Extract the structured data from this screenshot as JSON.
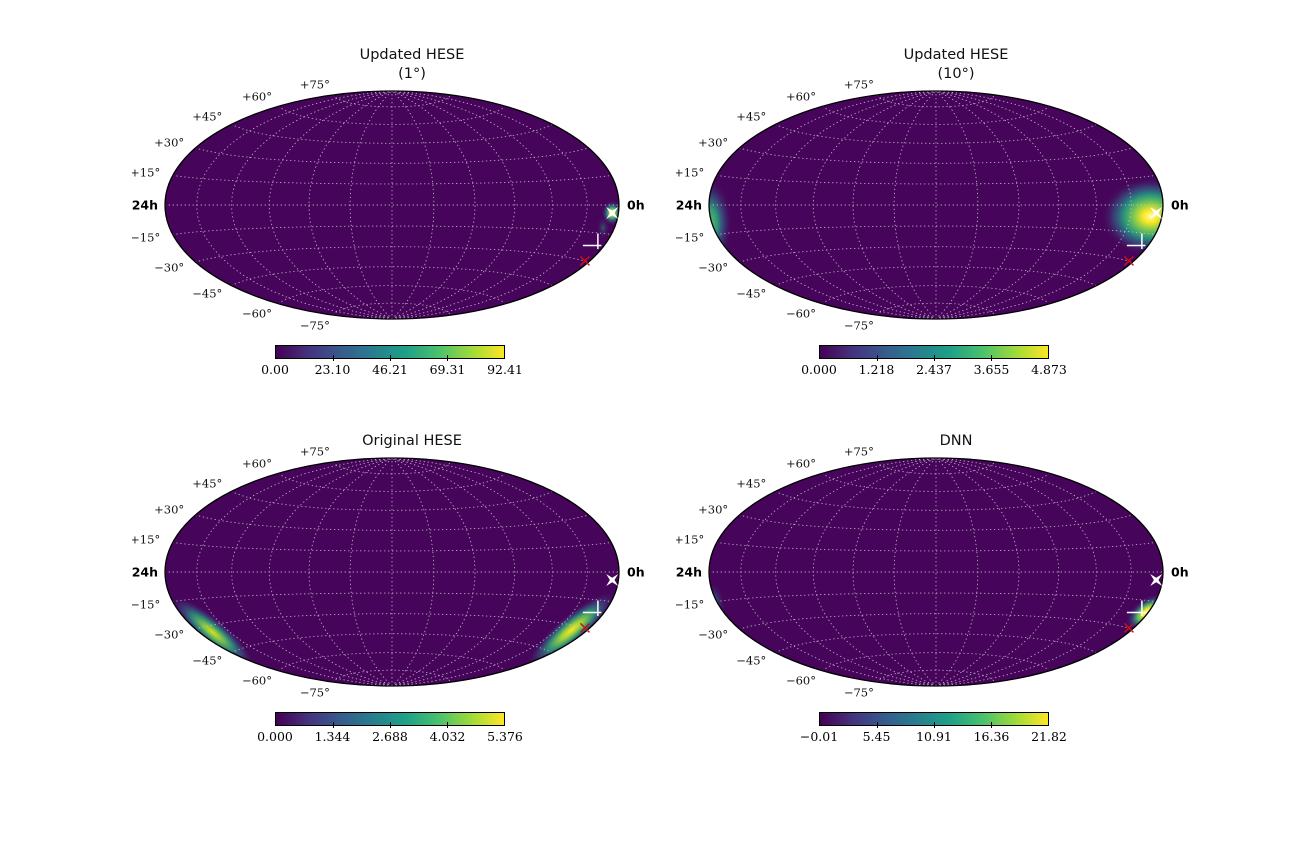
{
  "figure": {
    "background": "#ffffff",
    "axis_labels": {
      "declinations": [
        "+75°",
        "+60°",
        "+45°",
        "+30°",
        "+15°",
        "−15°",
        "−30°",
        "−45°",
        "−60°",
        "−75°"
      ],
      "declination_values": [
        75,
        60,
        45,
        30,
        15,
        -15,
        -30,
        -45,
        -60,
        -75
      ],
      "ra_left": "24h",
      "ra_right": "0h"
    },
    "colors": {
      "map_base": "#46055a",
      "outline": "#000000",
      "graticule": "#cfc8d8",
      "marker_star": "#ffffff",
      "marker_cross": "#ffffff",
      "marker_x": "#c11414",
      "viridis": [
        "#440154",
        "#46327e",
        "#365c8d",
        "#277f8e",
        "#1fa187",
        "#4ac16d",
        "#a0da39",
        "#fde725"
      ]
    }
  },
  "chart_data": {
    "type": "heatmap",
    "subtype": "all-sky-probability-maps",
    "projection": "hammer",
    "grid": "2x2",
    "graticule": {
      "parallels_deg": [
        -75,
        -60,
        -45,
        -30,
        -15,
        0,
        15,
        30,
        45,
        60,
        75
      ],
      "meridians_deg": [
        -150,
        -120,
        -90,
        -60,
        -30,
        0,
        30,
        60,
        90,
        120,
        150
      ],
      "style": "dotted"
    },
    "markers": [
      {
        "type": "star",
        "name": "star-marker",
        "fx": 0.97,
        "fy": 0.07
      },
      {
        "type": "corner-cross",
        "name": "cross-marker",
        "fx": 0.907,
        "fy": 0.355
      },
      {
        "type": "x",
        "name": "x-marker",
        "fx": 0.85,
        "fy": 0.49
      }
    ],
    "panels": [
      {
        "id": "updated-hese-1deg",
        "title_lines": [
          "Updated HESE",
          "(1°)"
        ],
        "colorbar": {
          "min": 0.0,
          "max": 92.41,
          "tick_labels": [
            "0.00",
            "23.10",
            "46.21",
            "69.31",
            "92.41"
          ]
        },
        "hotspots": [
          {
            "fx": 0.97,
            "fy": 0.07,
            "rx": 11,
            "ry": 13,
            "rot": 0,
            "stops": [
              [
                0,
                "#ffffff",
                1
              ],
              [
                0.2,
                "#c8e84a",
                0.95
              ],
              [
                0.45,
                "#35b779",
                0.8
              ],
              [
                0.7,
                "#2c628e",
                0.45
              ],
              [
                1,
                "#440154",
                0
              ]
            ]
          },
          {
            "fx": 0.93,
            "fy": 0.2,
            "rx": 7,
            "ry": 12,
            "rot": 0,
            "stops": [
              [
                0,
                "#22a884",
                0.5
              ],
              [
                1,
                "#440154",
                0
              ]
            ]
          }
        ]
      },
      {
        "id": "updated-hese-10deg",
        "title_lines": [
          "Updated HESE",
          "(10°)"
        ],
        "colorbar": {
          "min": 0.0,
          "max": 4.873,
          "tick_labels": [
            "0.000",
            "1.218",
            "2.437",
            "3.655",
            "4.873"
          ]
        },
        "hotspots": [
          {
            "fx": 0.945,
            "fy": 0.1,
            "rx": 50,
            "ry": 40,
            "rot": 0,
            "stops": [
              [
                0,
                "#feffb0",
                1
              ],
              [
                0.15,
                "#fde725",
                1
              ],
              [
                0.35,
                "#7ad151",
                0.95
              ],
              [
                0.55,
                "#22a884",
                0.85
              ],
              [
                0.75,
                "#33638d",
                0.55
              ],
              [
                1,
                "#440154",
                0
              ]
            ]
          },
          {
            "fx": -1.0,
            "fy": 0.16,
            "rx": 24,
            "ry": 46,
            "rot": 0,
            "stops": [
              [
                0,
                "#6ece58",
                0.95
              ],
              [
                0.35,
                "#2ab07f",
                0.85
              ],
              [
                0.65,
                "#31688e",
                0.5
              ],
              [
                1,
                "#440154",
                0
              ]
            ]
          }
        ]
      },
      {
        "id": "original-hese",
        "title_lines": [
          "Original HESE"
        ],
        "colorbar": {
          "min": 0.0,
          "max": 5.376,
          "tick_labels": [
            "0.000",
            "1.344",
            "2.688",
            "4.032",
            "5.376"
          ]
        },
        "hotspots": [
          {
            "fx": 0.79,
            "fy": 0.51,
            "rx": 58,
            "ry": 15,
            "rot": -40,
            "stops": [
              [
                0,
                "#fde725",
                1
              ],
              [
                0.25,
                "#9bd93c",
                0.95
              ],
              [
                0.5,
                "#2ab07f",
                0.8
              ],
              [
                0.75,
                "#355e8d",
                0.45
              ],
              [
                1,
                "#440154",
                0
              ]
            ]
          },
          {
            "fx": -0.79,
            "fy": 0.53,
            "rx": 55,
            "ry": 14,
            "rot": 40,
            "stops": [
              [
                0,
                "#d8e219",
                1
              ],
              [
                0.25,
                "#7ad151",
                0.9
              ],
              [
                0.5,
                "#22a884",
                0.75
              ],
              [
                0.75,
                "#355e8d",
                0.4
              ],
              [
                1,
                "#440154",
                0
              ]
            ]
          }
        ]
      },
      {
        "id": "dnn",
        "title_lines": [
          "DNN"
        ],
        "colorbar": {
          "min": -0.01,
          "max": 21.82,
          "tick_labels": [
            "−0.01",
            "5.45",
            "10.91",
            "16.36",
            "21.82"
          ]
        },
        "hotspots": [
          {
            "fx": 0.93,
            "fy": 0.355,
            "rx": 26,
            "ry": 14,
            "rot": -38,
            "stops": [
              [
                0,
                "#ffffd0",
                1
              ],
              [
                0.2,
                "#fde725",
                1
              ],
              [
                0.45,
                "#54c568",
                0.9
              ],
              [
                0.7,
                "#31688e",
                0.5
              ],
              [
                1,
                "#440154",
                0
              ]
            ]
          },
          {
            "fx": -0.985,
            "fy": 0.3,
            "rx": 13,
            "ry": 24,
            "rot": 0,
            "stops": [
              [
                0,
                "#22a884",
                0.9
              ],
              [
                0.5,
                "#2e6a8e",
                0.5
              ],
              [
                1,
                "#440154",
                0
              ]
            ]
          }
        ]
      }
    ]
  }
}
